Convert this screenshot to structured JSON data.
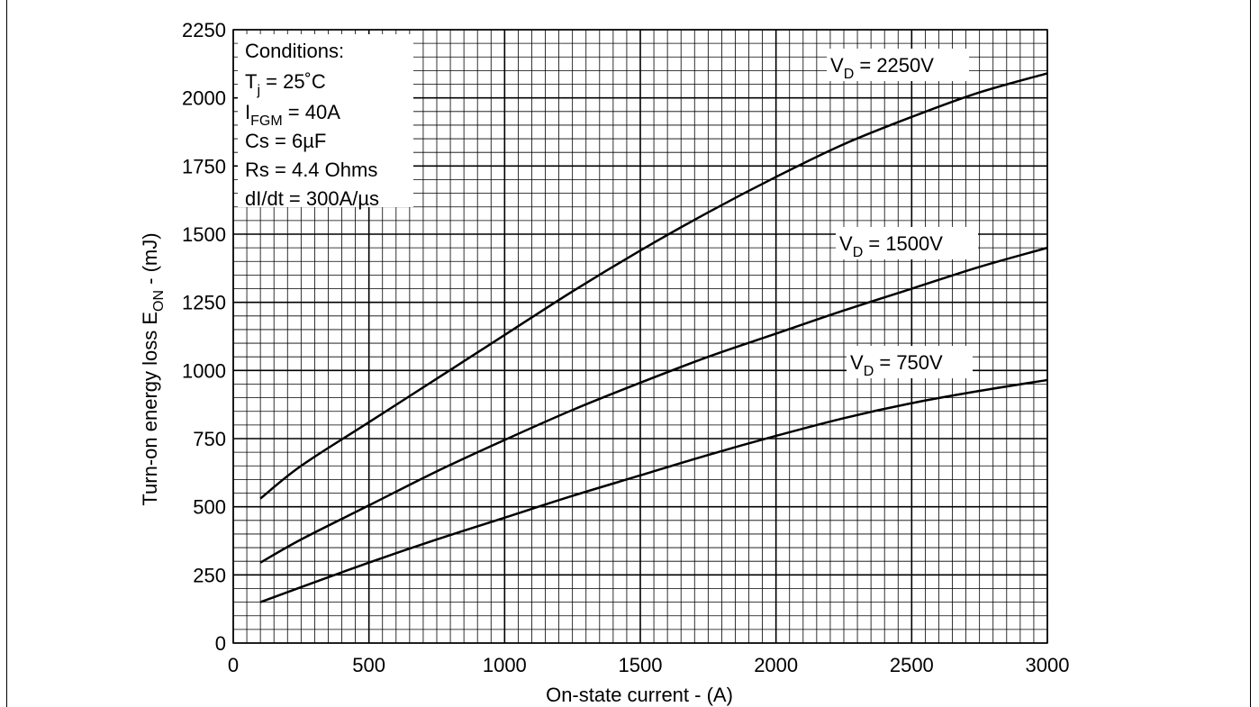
{
  "chart_data": {
    "type": "line",
    "title": "",
    "xlabel": "On-state current - (A)",
    "ylabel": {
      "main": "Turn-on energy loss E",
      "sub": "ON",
      "rest": " - (mJ)"
    },
    "xlim": [
      0,
      3000
    ],
    "ylim": [
      0,
      2250
    ],
    "xticks": [
      0,
      500,
      1000,
      1500,
      2000,
      2500,
      3000
    ],
    "yticks": [
      0,
      250,
      500,
      750,
      1000,
      1250,
      1500,
      1750,
      2000,
      2250
    ],
    "grid": true,
    "conditions": {
      "heading": "Conditions:",
      "lines": [
        {
          "main": "T",
          "sub": "j",
          "rest": " = 25˚C"
        },
        {
          "main": "I",
          "sub": "FGM",
          "rest": " = 40A"
        },
        {
          "main": "Cs = 6µF",
          "sub": "",
          "rest": ""
        },
        {
          "main": "Rs = 4.4 Ohms",
          "sub": "",
          "rest": ""
        },
        {
          "main": "dI/dt = 300A/µs",
          "sub": "",
          "rest": ""
        }
      ]
    },
    "series": [
      {
        "label": {
          "main": "V",
          "sub": "D",
          "rest": " = 2250V"
        },
        "x": [
          100,
          250,
          500,
          750,
          1000,
          1250,
          1500,
          1750,
          2000,
          2250,
          2500,
          2750,
          3000
        ],
        "y": [
          530,
          650,
          810,
          970,
          1130,
          1290,
          1440,
          1580,
          1710,
          1830,
          1930,
          2020,
          2090
        ]
      },
      {
        "label": {
          "main": "V",
          "sub": "D",
          "rest": " = 1500V"
        },
        "x": [
          100,
          250,
          500,
          750,
          1000,
          1250,
          1500,
          1750,
          2000,
          2250,
          2500,
          2750,
          3000
        ],
        "y": [
          295,
          380,
          505,
          630,
          745,
          855,
          955,
          1050,
          1135,
          1220,
          1300,
          1380,
          1450
        ]
      },
      {
        "label": {
          "main": "V",
          "sub": "D",
          "rest": " = 750V"
        },
        "x": [
          100,
          250,
          500,
          750,
          1000,
          1250,
          1500,
          1750,
          2000,
          2250,
          2500,
          2750,
          3000
        ],
        "y": [
          150,
          205,
          295,
          380,
          460,
          540,
          615,
          690,
          760,
          825,
          880,
          925,
          965
        ]
      }
    ]
  }
}
